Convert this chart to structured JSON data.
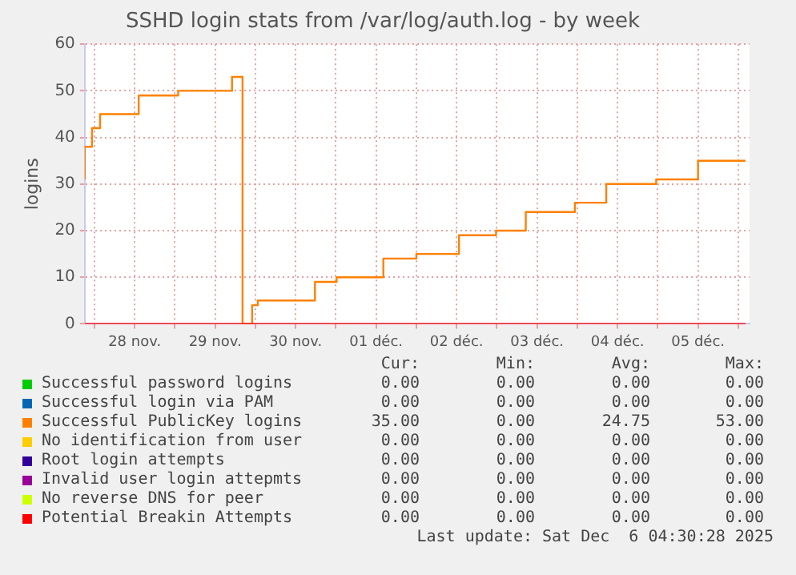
{
  "chart_data": {
    "type": "step",
    "title": "SSHD login stats from /var/log/auth.log - by week",
    "ylabel": "logins",
    "xlim": [
      "2025-11-27T21:07",
      "2025-12-06T03:22"
    ],
    "xticks": [
      {
        "value": "2025-11-28T00:00",
        "label": null
      },
      {
        "value": "2025-11-28T12:00",
        "label": "28 nov."
      },
      {
        "value": "2025-11-29T00:00",
        "label": null
      },
      {
        "value": "2025-11-29T12:00",
        "label": "29 nov."
      },
      {
        "value": "2025-11-30T00:00",
        "label": null
      },
      {
        "value": "2025-11-30T12:00",
        "label": "30 nov."
      },
      {
        "value": "2025-12-01T00:00",
        "label": null
      },
      {
        "value": "2025-12-01T12:00",
        "label": "01 déc."
      },
      {
        "value": "2025-12-02T00:00",
        "label": null
      },
      {
        "value": "2025-12-02T12:00",
        "label": "02 déc."
      },
      {
        "value": "2025-12-03T00:00",
        "label": null
      },
      {
        "value": "2025-12-03T12:00",
        "label": "03 déc."
      },
      {
        "value": "2025-12-04T00:00",
        "label": null
      },
      {
        "value": "2025-12-04T12:00",
        "label": "04 déc."
      },
      {
        "value": "2025-12-05T00:00",
        "label": null
      },
      {
        "value": "2025-12-05T12:00",
        "label": "05 déc."
      },
      {
        "value": "2025-12-06T00:00",
        "label": null
      }
    ],
    "ylim": [
      0,
      60
    ],
    "yticks": [
      0,
      10,
      20,
      30,
      40,
      50,
      60
    ],
    "grid": true,
    "legend": "bottom",
    "marker": "none",
    "line_style": "solid",
    "series": [
      {
        "name": "Successful password logins",
        "color": "#00cc00",
        "values": [
          null
        ]
      },
      {
        "name": "Successful login via PAM",
        "color": "#0066b3",
        "values": [
          null
        ]
      },
      {
        "name": "Successful PublicKey logins",
        "color": "#ff8000",
        "x": [
          "2025-11-27T21:07",
          "2025-11-27T23:17",
          "2025-11-28T01:41",
          "2025-11-28T13:12",
          "2025-11-29T00:58",
          "2025-11-29T17:02",
          "2025-11-29T20:10",
          "2025-11-29T23:02",
          "2025-11-30T00:43",
          "2025-11-30T17:46",
          "2025-12-01T00:14",
          "2025-12-01T14:10",
          "2025-12-02T00:00",
          "2025-12-02T12:43",
          "2025-12-02T23:46",
          "2025-12-03T08:38",
          "2025-12-03T23:17",
          "2025-12-04T08:38",
          "2025-12-04T23:31",
          "2025-12-05T12:00",
          "2025-12-05T22:48",
          "2025-12-06T02:10"
        ],
        "values": [
          31,
          38,
          42,
          45,
          49,
          50,
          53,
          0,
          4,
          5,
          9,
          10,
          14,
          15,
          19,
          20,
          24,
          26,
          30,
          31,
          35,
          35
        ]
      },
      {
        "name": "No identification from user",
        "color": "#ffcc00",
        "values": [
          null
        ]
      },
      {
        "name": "Root login attempts",
        "color": "#330099",
        "values": [
          null
        ]
      },
      {
        "name": "Invalid user login attepmts",
        "color": "#990099",
        "values": [
          null
        ]
      },
      {
        "name": "No reverse DNS for peer",
        "color": "#ccff00",
        "values": [
          null
        ]
      },
      {
        "name": "Potential Breakin Attempts",
        "color": "#ff0000",
        "x": [
          "2025-11-27T21:07",
          "2025-12-06T02:10"
        ],
        "values": [
          0,
          0
        ]
      }
    ],
    "annotations": [
      "Cur:",
      "Min:",
      "Avg:",
      "Max:",
      "0.00",
      "0.00",
      "0.00",
      "0.00",
      "0.00",
      "0.00",
      "0.00",
      "0.00",
      "35.00",
      "0.00",
      "24.75",
      "53.00",
      "0.00",
      "0.00",
      "0.00",
      "0.00",
      "0.00",
      "0.00",
      "0.00",
      "0.00",
      "0.00",
      "0.00",
      "0.00",
      "0.00",
      "0.00",
      "0.00",
      "0.00",
      "0.00",
      "0.00",
      "0.00",
      "0.00",
      "0.00",
      "Last update: Sat Dec  6 04:30:28 2025"
    ]
  }
}
